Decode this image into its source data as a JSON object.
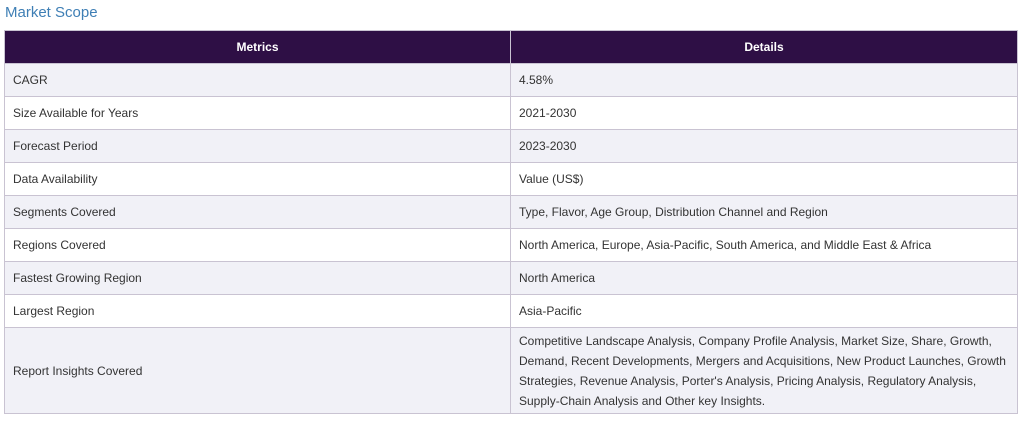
{
  "section": {
    "title": "Market Scope"
  },
  "table": {
    "headers": [
      "Metrics",
      "Details"
    ],
    "rows": [
      {
        "metric": "CAGR",
        "details": "4.58%"
      },
      {
        "metric": "Size Available for Years",
        "details": "2021-2030"
      },
      {
        "metric": "Forecast Period",
        "details": "2023-2030"
      },
      {
        "metric": "Data Availability",
        "details": "Value (US$)"
      },
      {
        "metric": "Segments Covered",
        "details": "Type, Flavor, Age Group, Distribution Channel and Region"
      },
      {
        "metric": "Regions Covered",
        "details": "North America, Europe, Asia-Pacific, South America, and Middle East & Africa"
      },
      {
        "metric": "Fastest Growing Region",
        "details": "North America"
      },
      {
        "metric": "Largest Region",
        "details": "Asia-Pacific"
      },
      {
        "metric": "Report Insights Covered",
        "details": "Competitive Landscape Analysis, Company Profile Analysis, Market Size, Share, Growth, Demand, Recent Developments, Mergers and Acquisitions, New Product Launches, Growth Strategies, Revenue Analysis, Porter's Analysis, Pricing Analysis, Regulatory Analysis, Supply-Chain Analysis and Other key Insights."
      }
    ]
  },
  "colors": {
    "header_bg": "#2e0f45",
    "title": "#3f7fb5",
    "row_alt": "#f1f1f7",
    "border": "#c9c3d2"
  }
}
